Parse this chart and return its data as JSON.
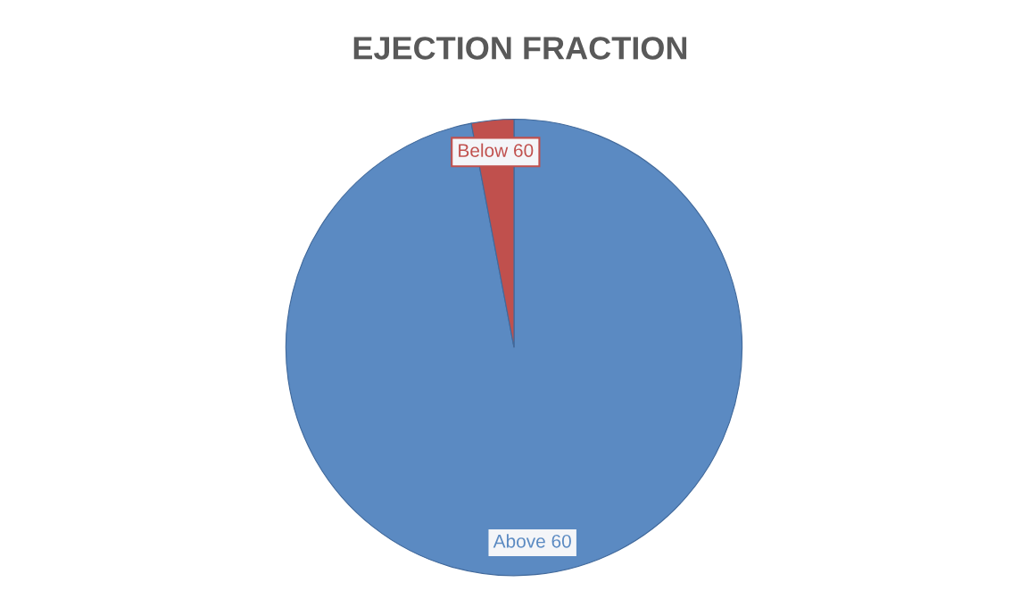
{
  "chart_data": {
    "type": "pie",
    "title": "EJECTION FRACTION",
    "categories": [
      "Above 60",
      "Below 60"
    ],
    "values": [
      97,
      3
    ],
    "colors": [
      "#5b8ac2",
      "#c0504d"
    ]
  }
}
